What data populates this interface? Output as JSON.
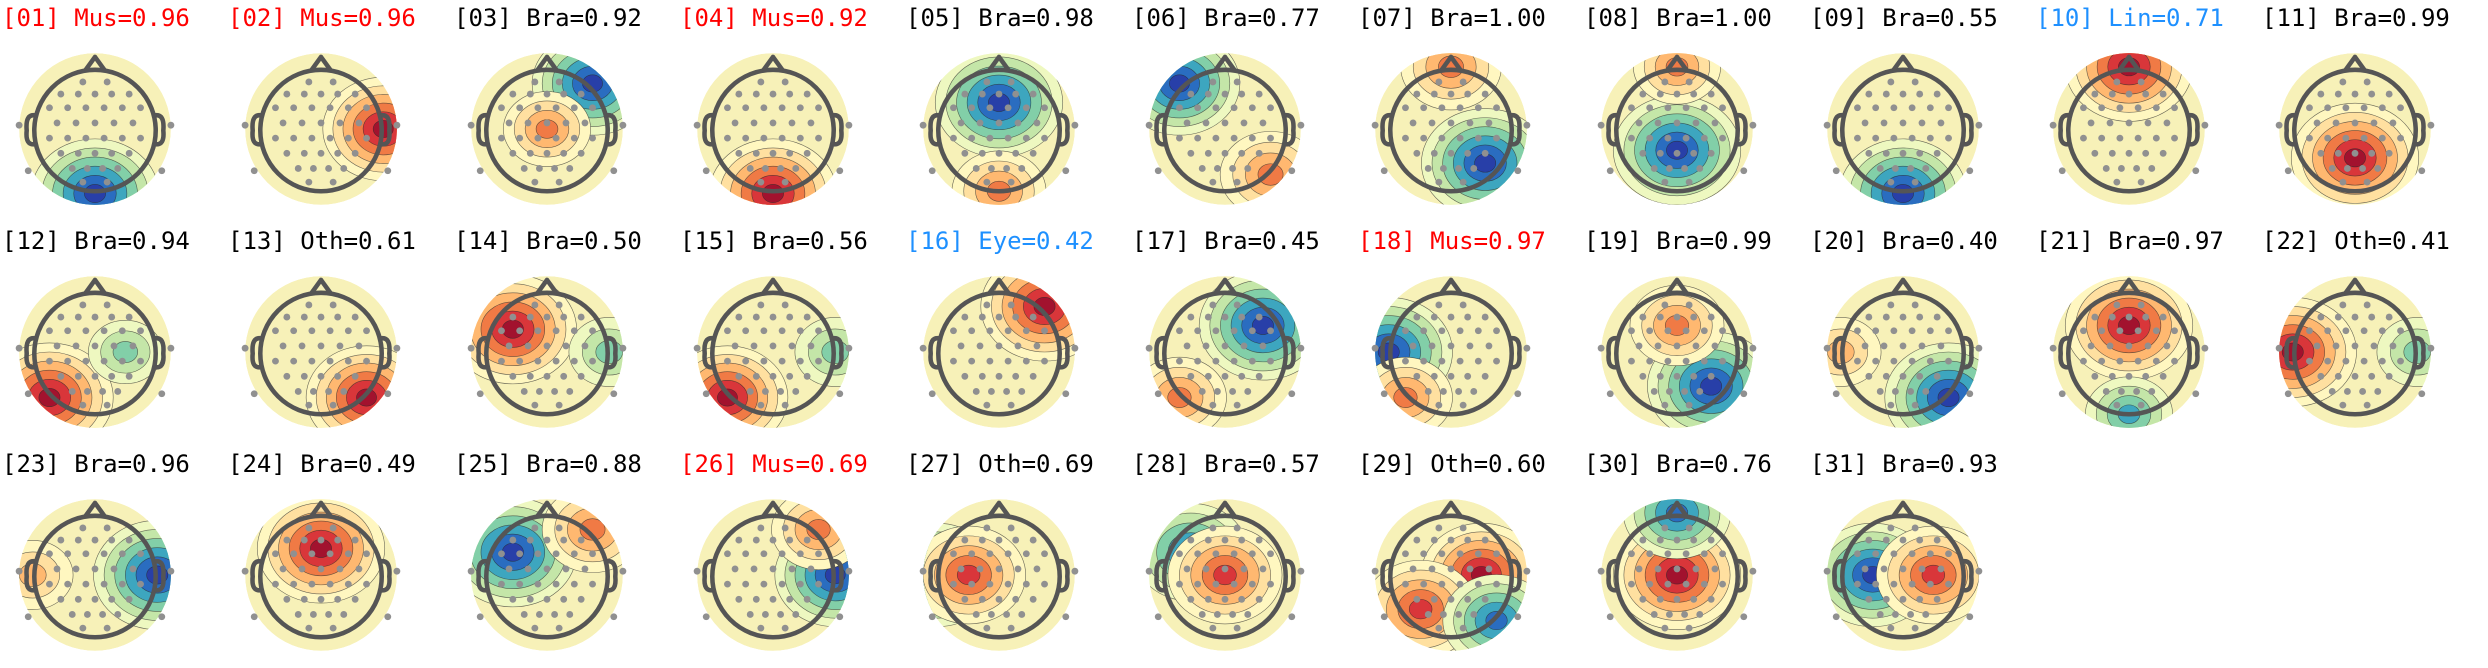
{
  "colors": {
    "muscle": "#ff0000",
    "brain": "#000000",
    "other": "#000000",
    "eye": "#1e90ff",
    "line_noise": "#1e90ff",
    "head_outline": "#555555",
    "electrode": "#909090",
    "contour": "#2a2a2a"
  },
  "components": [
    {
      "title": "[01] Mus=0.96",
      "label": "Mus",
      "prob": 0.96,
      "kind": "muscle",
      "blobs": [
        {
          "pos": "bottom-center",
          "polarity": "negative",
          "strength": 1.0
        }
      ]
    },
    {
      "title": "[02] Mus=0.96",
      "label": "Mus",
      "prob": 0.96,
      "kind": "muscle",
      "blobs": [
        {
          "pos": "right",
          "polarity": "positive",
          "strength": 0.9
        }
      ]
    },
    {
      "title": "[03] Bra=0.92",
      "label": "Bra",
      "prob": 0.92,
      "kind": "brain",
      "blobs": [
        {
          "pos": "top-right",
          "polarity": "negative",
          "strength": 0.9
        },
        {
          "pos": "center",
          "polarity": "positive",
          "strength": 0.4
        }
      ]
    },
    {
      "title": "[04] Mus=0.92",
      "label": "Mus",
      "prob": 0.92,
      "kind": "muscle",
      "blobs": [
        {
          "pos": "bottom-center",
          "polarity": "positive",
          "strength": 1.0
        }
      ]
    },
    {
      "title": "[05] Bra=0.98",
      "label": "Bra",
      "prob": 0.98,
      "kind": "brain",
      "blobs": [
        {
          "pos": "upper-center",
          "polarity": "negative",
          "strength": 1.0
        },
        {
          "pos": "bottom",
          "polarity": "positive",
          "strength": 0.5
        }
      ]
    },
    {
      "title": "[06] Bra=0.77",
      "label": "Bra",
      "prob": 0.77,
      "kind": "brain",
      "blobs": [
        {
          "pos": "top-left",
          "polarity": "negative",
          "strength": 0.9
        },
        {
          "pos": "bottom-right",
          "polarity": "positive",
          "strength": 0.6
        }
      ]
    },
    {
      "title": "[07] Bra=1.00",
      "label": "Bra",
      "prob": 1.0,
      "kind": "brain",
      "blobs": [
        {
          "pos": "lower-right",
          "polarity": "negative",
          "strength": 1.0
        },
        {
          "pos": "top",
          "polarity": "positive",
          "strength": 0.6
        }
      ]
    },
    {
      "title": "[08] Bra=1.00",
      "label": "Bra",
      "prob": 1.0,
      "kind": "brain",
      "blobs": [
        {
          "pos": "center-lower",
          "polarity": "negative",
          "strength": 1.0
        },
        {
          "pos": "top",
          "polarity": "positive",
          "strength": 0.4
        }
      ]
    },
    {
      "title": "[09] Bra=0.55",
      "label": "Bra",
      "prob": 0.55,
      "kind": "brain",
      "blobs": [
        {
          "pos": "bottom-center",
          "polarity": "negative",
          "strength": 1.0
        }
      ]
    },
    {
      "title": "[10] Lin=0.71",
      "label": "Lin",
      "prob": 0.71,
      "kind": "line_noise",
      "blobs": [
        {
          "pos": "top",
          "polarity": "positive",
          "strength": 1.0
        }
      ]
    },
    {
      "title": "[11] Bra=0.99",
      "label": "Bra",
      "prob": 0.99,
      "kind": "brain",
      "blobs": [
        {
          "pos": "lower-center",
          "polarity": "positive",
          "strength": 1.0
        }
      ]
    },
    {
      "title": "[12] Bra=0.94",
      "label": "Bra",
      "prob": 0.94,
      "kind": "brain",
      "blobs": [
        {
          "pos": "bottom-left",
          "polarity": "positive",
          "strength": 1.0
        },
        {
          "pos": "center-right",
          "polarity": "negative",
          "strength": 0.2
        }
      ]
    },
    {
      "title": "[13] Oth=0.61",
      "label": "Oth",
      "prob": 0.61,
      "kind": "other",
      "blobs": [
        {
          "pos": "bottom-right",
          "polarity": "positive",
          "strength": 0.9
        }
      ]
    },
    {
      "title": "[14] Bra=0.50",
      "label": "Bra",
      "prob": 0.5,
      "kind": "brain",
      "blobs": [
        {
          "pos": "upper-left",
          "polarity": "positive",
          "strength": 1.0
        },
        {
          "pos": "right",
          "polarity": "negative",
          "strength": 0.3
        }
      ]
    },
    {
      "title": "[15] Bra=0.56",
      "label": "Bra",
      "prob": 0.56,
      "kind": "brain",
      "blobs": [
        {
          "pos": "bottom-left",
          "polarity": "positive",
          "strength": 0.9
        },
        {
          "pos": "right",
          "polarity": "negative",
          "strength": 0.3
        }
      ]
    },
    {
      "title": "[16] Eye=0.42",
      "label": "Eye",
      "prob": 0.42,
      "kind": "eye",
      "blobs": [
        {
          "pos": "top-right",
          "polarity": "positive",
          "strength": 1.0
        }
      ]
    },
    {
      "title": "[17] Bra=0.45",
      "label": "Bra",
      "prob": 0.45,
      "kind": "brain",
      "blobs": [
        {
          "pos": "upper-right",
          "polarity": "negative",
          "strength": 1.0
        },
        {
          "pos": "bottom-left",
          "polarity": "positive",
          "strength": 0.5
        }
      ]
    },
    {
      "title": "[18] Mus=0.97",
      "label": "Mus",
      "prob": 0.97,
      "kind": "muscle",
      "blobs": [
        {
          "pos": "left",
          "polarity": "negative",
          "strength": 1.0
        },
        {
          "pos": "bottom-left",
          "polarity": "positive",
          "strength": 0.5
        }
      ]
    },
    {
      "title": "[19] Bra=0.99",
      "label": "Bra",
      "prob": 0.99,
      "kind": "brain",
      "blobs": [
        {
          "pos": "lower-right",
          "polarity": "negative",
          "strength": 1.0
        },
        {
          "pos": "upper-center",
          "polarity": "positive",
          "strength": 0.5
        }
      ]
    },
    {
      "title": "[20] Bra=0.40",
      "label": "Bra",
      "prob": 0.4,
      "kind": "brain",
      "blobs": [
        {
          "pos": "bottom-right",
          "polarity": "negative",
          "strength": 1.0
        },
        {
          "pos": "left",
          "polarity": "positive",
          "strength": 0.3
        }
      ]
    },
    {
      "title": "[21] Bra=0.97",
      "label": "Bra",
      "prob": 0.97,
      "kind": "brain",
      "blobs": [
        {
          "pos": "upper-center",
          "polarity": "positive",
          "strength": 1.0
        },
        {
          "pos": "bottom",
          "polarity": "negative",
          "strength": 0.4
        }
      ]
    },
    {
      "title": "[22] Oth=0.41",
      "label": "Oth",
      "prob": 0.41,
      "kind": "other",
      "blobs": [
        {
          "pos": "left",
          "polarity": "positive",
          "strength": 1.0
        },
        {
          "pos": "right",
          "polarity": "negative",
          "strength": 0.3
        }
      ]
    },
    {
      "title": "[23] Bra=0.96",
      "label": "Bra",
      "prob": 0.96,
      "kind": "brain",
      "blobs": [
        {
          "pos": "right",
          "polarity": "negative",
          "strength": 1.0
        },
        {
          "pos": "left",
          "polarity": "positive",
          "strength": 0.3
        }
      ]
    },
    {
      "title": "[24] Bra=0.49",
      "label": "Bra",
      "prob": 0.49,
      "kind": "brain",
      "blobs": [
        {
          "pos": "upper-center",
          "polarity": "positive",
          "strength": 1.0
        }
      ]
    },
    {
      "title": "[25] Bra=0.88",
      "label": "Bra",
      "prob": 0.88,
      "kind": "brain",
      "blobs": [
        {
          "pos": "upper-left",
          "polarity": "negative",
          "strength": 1.0
        },
        {
          "pos": "top-right",
          "polarity": "positive",
          "strength": 0.6
        }
      ]
    },
    {
      "title": "[26] Mus=0.69",
      "label": "Mus",
      "prob": 0.69,
      "kind": "muscle",
      "blobs": [
        {
          "pos": "right",
          "polarity": "negative",
          "strength": 0.9
        },
        {
          "pos": "top-right",
          "polarity": "positive",
          "strength": 0.5
        }
      ]
    },
    {
      "title": "[27] Oth=0.69",
      "label": "Oth",
      "prob": 0.69,
      "kind": "other",
      "blobs": [
        {
          "pos": "left",
          "polarity": "negative",
          "strength": 0.9
        },
        {
          "pos": "center-left",
          "polarity": "positive",
          "strength": 0.8
        }
      ]
    },
    {
      "title": "[28] Bra=0.57",
      "label": "Bra",
      "prob": 0.57,
      "kind": "brain",
      "blobs": [
        {
          "pos": "upper-left",
          "polarity": "negative",
          "strength": 0.8
        },
        {
          "pos": "center",
          "polarity": "positive",
          "strength": 0.8
        }
      ]
    },
    {
      "title": "[29] Oth=0.60",
      "label": "Oth",
      "prob": 0.6,
      "kind": "other",
      "blobs": [
        {
          "pos": "center-right",
          "polarity": "positive",
          "strength": 0.9
        },
        {
          "pos": "lower-left",
          "polarity": "positive",
          "strength": 0.8
        },
        {
          "pos": "bottom-right",
          "polarity": "negative",
          "strength": 0.7
        }
      ]
    },
    {
      "title": "[30] Bra=0.76",
      "label": "Bra",
      "prob": 0.76,
      "kind": "brain",
      "blobs": [
        {
          "pos": "center",
          "polarity": "positive",
          "strength": 1.0
        },
        {
          "pos": "top",
          "polarity": "negative",
          "strength": 0.7
        }
      ]
    },
    {
      "title": "[31] Bra=0.93",
      "label": "Bra",
      "prob": 0.93,
      "kind": "brain",
      "blobs": [
        {
          "pos": "center-left",
          "polarity": "negative",
          "strength": 0.9
        },
        {
          "pos": "center-right",
          "polarity": "positive",
          "strength": 0.8
        }
      ]
    }
  ]
}
